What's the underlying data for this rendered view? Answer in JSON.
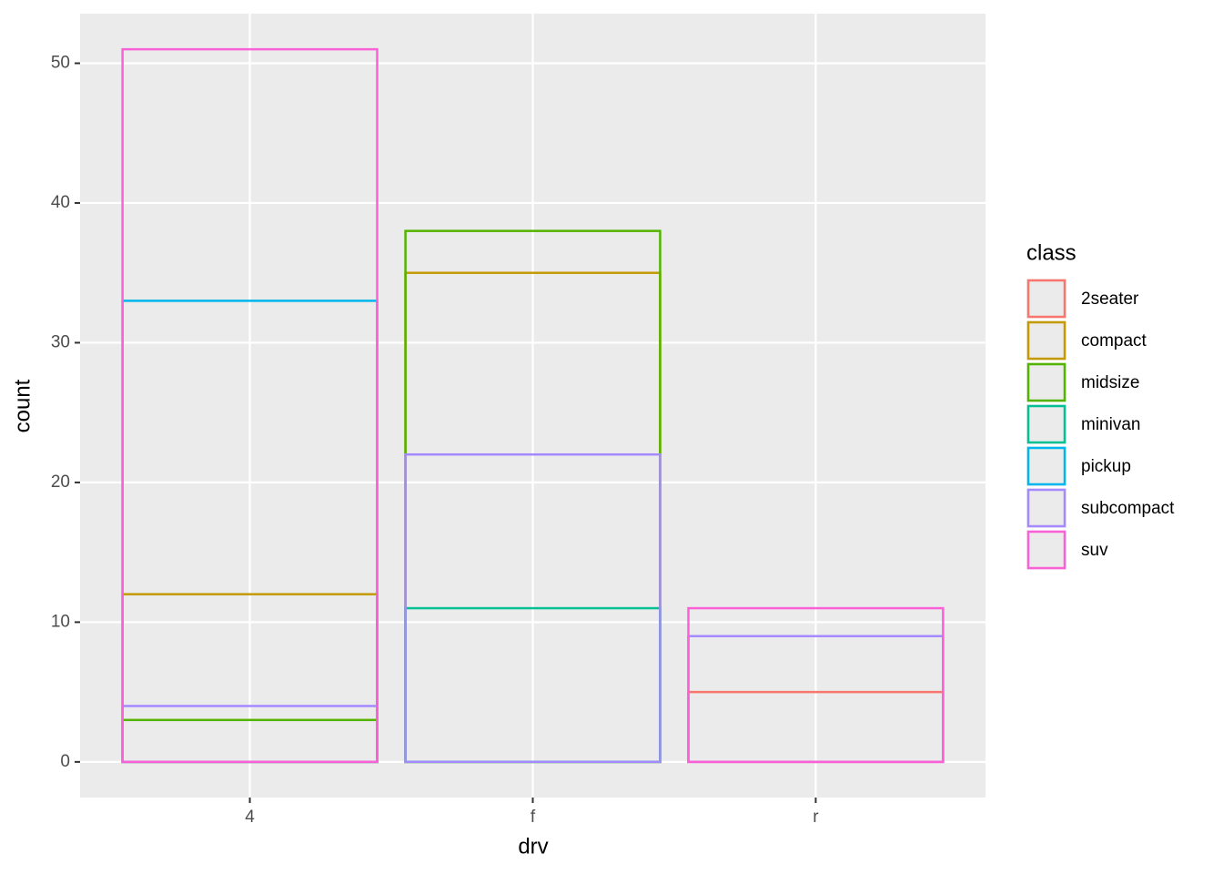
{
  "chart_data": {
    "type": "bar",
    "position": "identity",
    "x_label": "drv",
    "y_label": "count",
    "legend_title": "class",
    "legend_position": "right",
    "grid": true,
    "categories": [
      "4",
      "f",
      "r"
    ],
    "series": [
      {
        "name": "2seater",
        "color": "#F8766D",
        "values": [
          null,
          null,
          5
        ]
      },
      {
        "name": "compact",
        "color": "#C49A00",
        "values": [
          12,
          35,
          null
        ]
      },
      {
        "name": "midsize",
        "color": "#53B400",
        "values": [
          3,
          38,
          null
        ]
      },
      {
        "name": "minivan",
        "color": "#00C094",
        "values": [
          null,
          11,
          null
        ]
      },
      {
        "name": "pickup",
        "color": "#00B6EB",
        "values": [
          33,
          null,
          null
        ]
      },
      {
        "name": "subcompact",
        "color": "#A58AFF",
        "values": [
          4,
          22,
          9
        ]
      },
      {
        "name": "suv",
        "color": "#FB61D7",
        "values": [
          51,
          null,
          11
        ]
      }
    ],
    "ylim": [
      -2.55,
      53.55
    ],
    "yticks": [
      0,
      10,
      20,
      30,
      40,
      50
    ]
  }
}
